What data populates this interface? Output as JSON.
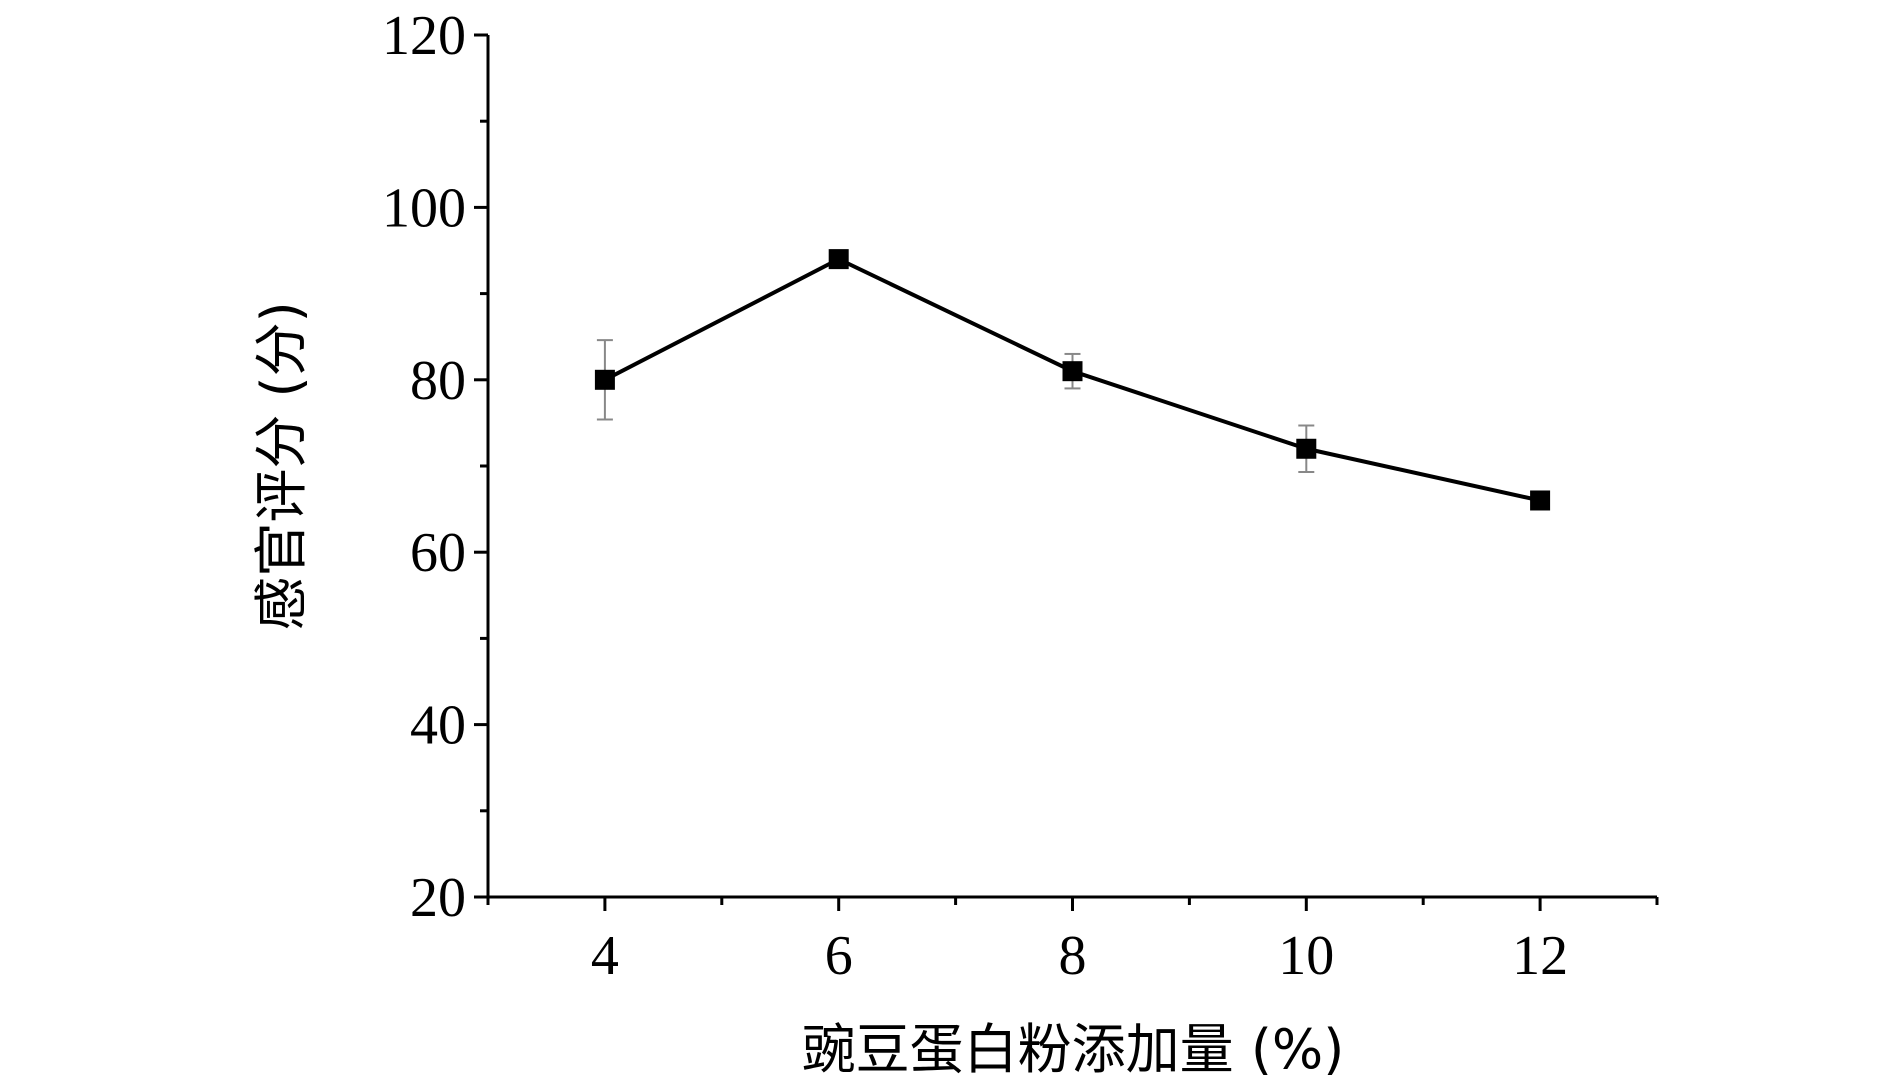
{
  "chart_data": {
    "type": "line",
    "title": "",
    "xlabel": "豌豆蛋白粉添加量 (%)",
    "ylabel": "感官评分 (分)",
    "xlim": [
      3,
      13
    ],
    "ylim": [
      20,
      120
    ],
    "x_ticks": [
      4,
      6,
      8,
      10,
      12
    ],
    "y_ticks": [
      20,
      40,
      60,
      80,
      100,
      120
    ],
    "grid": false,
    "legend": "none",
    "series": [
      {
        "x": [
          4,
          6,
          8,
          10,
          12
        ],
        "values": [
          80,
          94,
          81,
          72,
          66
        ],
        "error": [
          4.6,
          0.5,
          2.0,
          2.7,
          0.5
        ],
        "marker": "square",
        "color": "#000000"
      }
    ]
  }
}
